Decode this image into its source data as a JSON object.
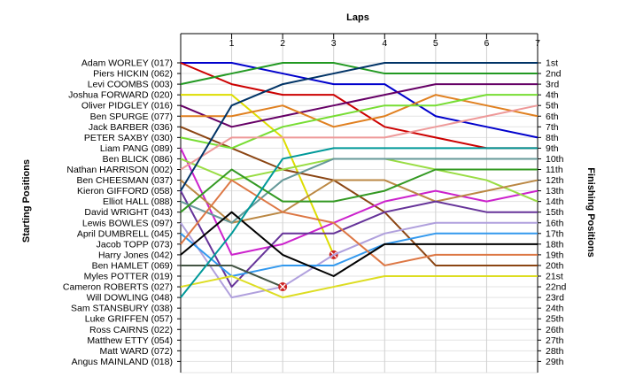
{
  "chart_data": {
    "type": "line",
    "title": "Laps",
    "ylabel_left": "Starting Positions",
    "ylabel_right": "Finishing Positions",
    "x": [
      0,
      1,
      2,
      3,
      4,
      5,
      6,
      7
    ],
    "x_ticks": [
      "1",
      "2",
      "3",
      "4",
      "5",
      "6",
      "7"
    ],
    "y_range": [
      1,
      29
    ],
    "start_labels": [
      "Adam WORLEY (017)",
      "Piers HICKIN (062)",
      "Levi COOMBS (003)",
      "Joshua FORWARD (020)",
      "Oliver PIDGLEY (016)",
      "Ben SPURGE (077)",
      "Jack BARBER (036)",
      "PETER SAXBY (030)",
      "Liam PANG (089)",
      "Ben BLICK (086)",
      "Nathan HARRISON (002)",
      "Ben CHEESMAN (037)",
      "Kieron GIFFORD (058)",
      "Elliot HALL (088)",
      "David WRIGHT (043)",
      "Lewis BOWLES (097)",
      "April DUMBRELL (045)",
      "Jacob TOPP (073)",
      "Harry Jones (042)",
      "Ben HAMLET (069)",
      "Myles POTTER (019)",
      "Cameron ROBERTS (027)",
      "Will DOWLING (048)",
      "Sam STANSBURY (038)",
      "Luke GRIFFEN (057)",
      "Ross CAIRNS (022)",
      "Matthew ETTY (054)",
      "Matt WARD (072)",
      "Angus MAINLAND (018)"
    ],
    "finish_labels": [
      "1st",
      "2nd",
      "3rd",
      "4th",
      "5th",
      "6th",
      "7th",
      "8th",
      "9th",
      "10th",
      "11th",
      "12th",
      "13th",
      "14th",
      "15th",
      "16th",
      "17th",
      "18th",
      "19th",
      "20th",
      "21st",
      "22nd",
      "23rd",
      "24th",
      "25th",
      "26th",
      "27th",
      "28th",
      "29th"
    ],
    "grid": true,
    "series": [
      {
        "color": "#0000cc",
        "values": [
          1,
          1,
          2,
          3,
          3,
          6,
          7,
          8
        ]
      },
      {
        "color": "#cc0000",
        "values": [
          1,
          3,
          4,
          4,
          7,
          8,
          9,
          9
        ]
      },
      {
        "color": "#229922",
        "values": [
          3,
          2,
          1,
          1,
          2,
          2,
          2,
          2
        ]
      },
      {
        "color": "#dddd00",
        "values": [
          4,
          4,
          8,
          19,
          null,
          null,
          null,
          null
        ],
        "dnf_at": [
          3,
          19
        ]
      },
      {
        "color": "#660066",
        "values": [
          5,
          7,
          6,
          5,
          4,
          3,
          3,
          3
        ]
      },
      {
        "color": "#e08020",
        "values": [
          6,
          6,
          5,
          7,
          6,
          4,
          5,
          6
        ]
      },
      {
        "color": "#8b4513",
        "values": [
          7,
          9,
          11,
          12,
          15,
          20,
          20,
          20
        ]
      },
      {
        "color": "#77dd33",
        "values": [
          8,
          9,
          7,
          6,
          5,
          5,
          4,
          4
        ]
      },
      {
        "color": "#cc22cc",
        "values": [
          9,
          19,
          18,
          16,
          14,
          13,
          14,
          13
        ]
      },
      {
        "color": "#99dd44",
        "values": [
          10,
          12,
          11,
          10,
          10,
          11,
          12,
          14
        ]
      },
      {
        "color": "#ee9999",
        "values": [
          11,
          8,
          8,
          8,
          8,
          7,
          6,
          5
        ]
      },
      {
        "color": "#bb8844",
        "values": [
          12,
          16,
          15,
          12,
          12,
          14,
          13,
          12
        ]
      },
      {
        "color": "#663399",
        "values": [
          13,
          22,
          17,
          17,
          15,
          14,
          15,
          15
        ]
      },
      {
        "color": "#669999",
        "values": [
          14,
          16,
          12,
          10,
          10,
          10,
          10,
          10
        ]
      },
      {
        "color": "#339922",
        "values": [
          15,
          11,
          14,
          14,
          13,
          11,
          11,
          11
        ]
      },
      {
        "color": "#b0a0dd",
        "values": [
          16,
          23,
          22,
          19,
          17,
          16,
          16,
          16
        ]
      },
      {
        "color": "#3399ee",
        "values": [
          17,
          21,
          20,
          20,
          18,
          17,
          17,
          17
        ]
      },
      {
        "color": "#dd7744",
        "values": [
          18,
          12,
          15,
          16,
          20,
          19,
          19,
          19
        ]
      },
      {
        "color": "#000000",
        "values": [
          19,
          15,
          19,
          21,
          18,
          18,
          18,
          18
        ]
      },
      {
        "color": "#445544",
        "values": [
          20,
          20,
          22,
          null,
          null,
          null,
          null,
          null
        ],
        "dnf_at": [
          2,
          22
        ]
      },
      {
        "color": "#dddd22",
        "values": [
          22,
          21,
          23,
          22,
          21,
          21,
          21,
          21
        ]
      },
      {
        "color": "#003366",
        "values": [
          13,
          5,
          3,
          2,
          1,
          1,
          1,
          1
        ]
      },
      {
        "color": "#009999",
        "values": [
          23,
          17,
          10,
          9,
          9,
          9,
          9,
          9
        ]
      }
    ]
  }
}
